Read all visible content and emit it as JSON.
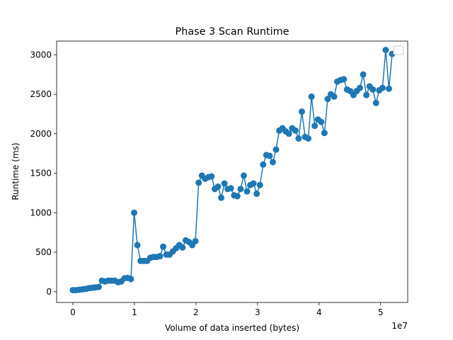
{
  "chart_data": {
    "type": "line",
    "title": "Phase 3 Scan Runtime",
    "x_label": "Volume of data inserted (bytes)",
    "y_label": "Runtime (ms)",
    "x_offset_label": "1e7",
    "color": "#1f77b4",
    "grid": false,
    "legend": "upper right",
    "xlim": [
      -2640000,
      54400000
    ],
    "ylim": [
      -136,
      3173
    ],
    "xticks": [
      0,
      {
        "value": 10000000,
        "label": "1"
      },
      {
        "value": 20000000,
        "label": "2"
      },
      {
        "value": 30000000,
        "label": "3"
      },
      {
        "value": 40000000,
        "label": "4"
      },
      {
        "value": 50000000,
        "label": "5"
      }
    ],
    "yticks": [
      0,
      500,
      1000,
      1500,
      2000,
      2500,
      3000
    ],
    "x": [
      0,
      524000,
      1048000,
      1572000,
      2096000,
      2620000,
      3144000,
      3668000,
      4192000,
      4716000,
      5240000,
      5764000,
      6288000,
      6812000,
      7336000,
      7860000,
      8384000,
      8908000,
      9432000,
      9956000,
      10480000,
      11004000,
      11528000,
      12052000,
      12576000,
      13100000,
      13624000,
      14148000,
      14672000,
      15196000,
      15720000,
      16244000,
      16768000,
      17292000,
      17816000,
      18340000,
      18864000,
      19388000,
      19912000,
      20436000,
      20960000,
      21484000,
      22008000,
      22532000,
      23056000,
      23580000,
      24104000,
      24628000,
      25152000,
      25676000,
      26200000,
      26724000,
      27248000,
      27772000,
      28296000,
      28820000,
      29344000,
      29868000,
      30392000,
      30916000,
      31440000,
      31964000,
      32488000,
      33012000,
      33536000,
      34060000,
      34584000,
      35108000,
      35632000,
      36156000,
      36680000,
      37204000,
      37728000,
      38252000,
      38776000,
      39300000,
      39824000,
      40348000,
      40872000,
      41396000,
      41920000,
      42444000,
      42968000,
      43492000,
      44016000,
      44540000,
      45064000,
      45588000,
      46112000,
      46636000,
      47160000,
      47684000,
      48208000,
      48732000,
      49256000,
      49780000,
      50304000,
      50828000,
      51352000,
      51876000
    ],
    "values": [
      20,
      20,
      25,
      30,
      35,
      45,
      50,
      55,
      60,
      140,
      130,
      140,
      140,
      140,
      120,
      130,
      170,
      175,
      160,
      1000,
      590,
      390,
      390,
      390,
      430,
      440,
      440,
      450,
      570,
      470,
      470,
      510,
      550,
      590,
      560,
      650,
      630,
      590,
      640,
      1380,
      1470,
      1430,
      1450,
      1460,
      1300,
      1330,
      1190,
      1370,
      1300,
      1310,
      1220,
      1210,
      1300,
      1470,
      1270,
      1350,
      1370,
      1240,
      1350,
      1610,
      1730,
      1720,
      1640,
      1800,
      2040,
      2070,
      2030,
      2000,
      2070,
      2040,
      1940,
      2280,
      1960,
      1940,
      2470,
      2100,
      2180,
      2150,
      2010,
      2440,
      2500,
      2470,
      2660,
      2680,
      2690,
      2560,
      2540,
      2490,
      2540,
      2580,
      2750,
      2490,
      2600,
      2560,
      2390,
      2550,
      2580,
      3060,
      2570,
      3010
    ]
  }
}
